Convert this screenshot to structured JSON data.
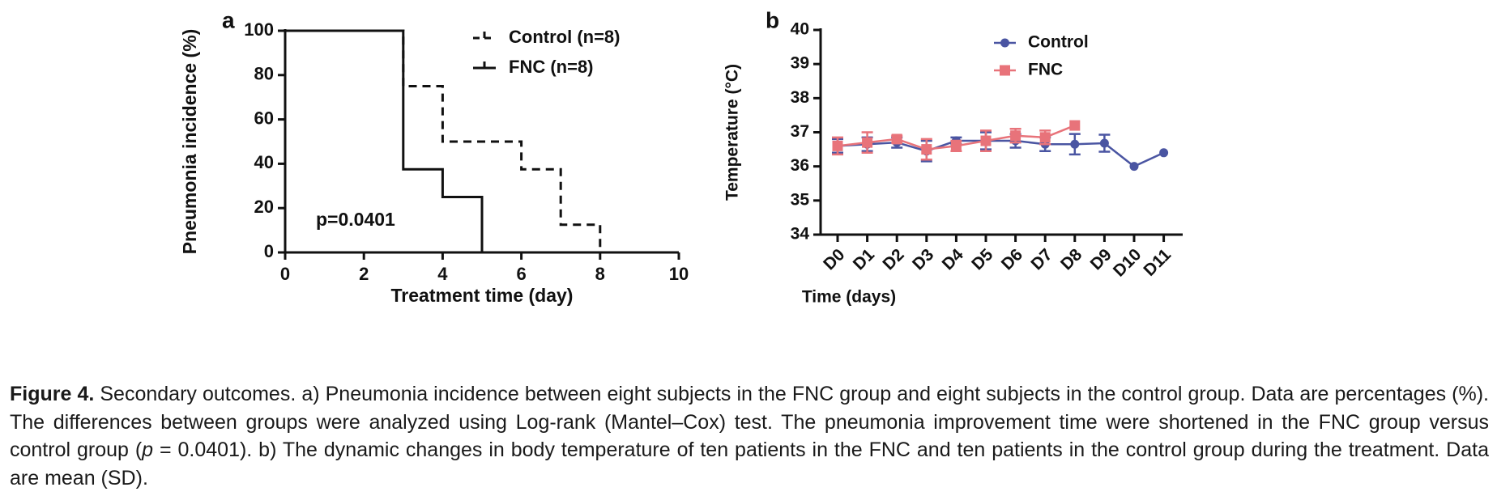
{
  "chart_data": [
    {
      "type": "step",
      "panel": "a",
      "xlabel": "Treatment time (day)",
      "ylabel": "Pneumonia incidence (%)",
      "xlim": [
        0,
        10
      ],
      "xticks": [
        0,
        2,
        4,
        6,
        8,
        10
      ],
      "ylim": [
        0,
        100
      ],
      "yticks": [
        0,
        20,
        40,
        60,
        80,
        100
      ],
      "annotation": "p=0.0401",
      "series": [
        {
          "name": "Control (n=8)",
          "color": "#111111",
          "dashed": true,
          "x": [
            0,
            3,
            4,
            6,
            7,
            8
          ],
          "values": [
            100,
            75,
            50,
            37.5,
            12.5,
            0
          ]
        },
        {
          "name": "FNC (n=8)",
          "color": "#111111",
          "dashed": false,
          "x": [
            0,
            3,
            4,
            5
          ],
          "values": [
            100,
            37.5,
            25,
            0
          ]
        }
      ]
    },
    {
      "type": "line",
      "panel": "b",
      "xlabel": "Time (days)",
      "ylabel": "Temperature (°C)",
      "categories": [
        "D0",
        "D1",
        "D2",
        "D3",
        "D4",
        "D5",
        "D6",
        "D7",
        "D8",
        "D9",
        "D10",
        "D11"
      ],
      "ylim": [
        34,
        40
      ],
      "yticks": [
        34,
        35,
        36,
        37,
        38,
        39,
        40
      ],
      "series": [
        {
          "name": "Control",
          "color": "#4a55a2",
          "marker": "circle",
          "values": [
            36.6,
            36.65,
            36.7,
            36.45,
            36.75,
            36.75,
            36.75,
            36.65,
            36.65,
            36.68,
            36.0,
            36.4
          ],
          "errors": [
            0.2,
            0.2,
            0.15,
            0.3,
            0.1,
            0.25,
            0.2,
            0.2,
            0.3,
            0.25,
            0,
            0
          ]
        },
        {
          "name": "FNC",
          "color": "#e8737a",
          "marker": "square",
          "values": [
            36.6,
            36.7,
            36.8,
            36.5,
            36.6,
            36.75,
            36.9,
            36.85,
            37.2,
            null,
            null,
            null
          ],
          "errors": [
            0.25,
            0.3,
            0.1,
            0.3,
            0.15,
            0.3,
            0.2,
            0.2,
            0,
            null,
            null,
            null
          ]
        }
      ]
    }
  ],
  "caption": {
    "label": "Figure 4.",
    "before": " Secondary outcomes. a) Pneumonia incidence between eight subjects in the FNC group and eight subjects in the control group. Data are percentages (%). The differences between groups were analyzed using Log-rank (Mantel–Cox) test. The pneumonia improvement time were shortened in the FNC group versus control group (",
    "symbol": "p",
    "after": " = 0.0401). b) The dynamic changes in body temperature of ten patients in the FNC and ten patients in the control group during the treatment. Data are mean (SD)."
  }
}
